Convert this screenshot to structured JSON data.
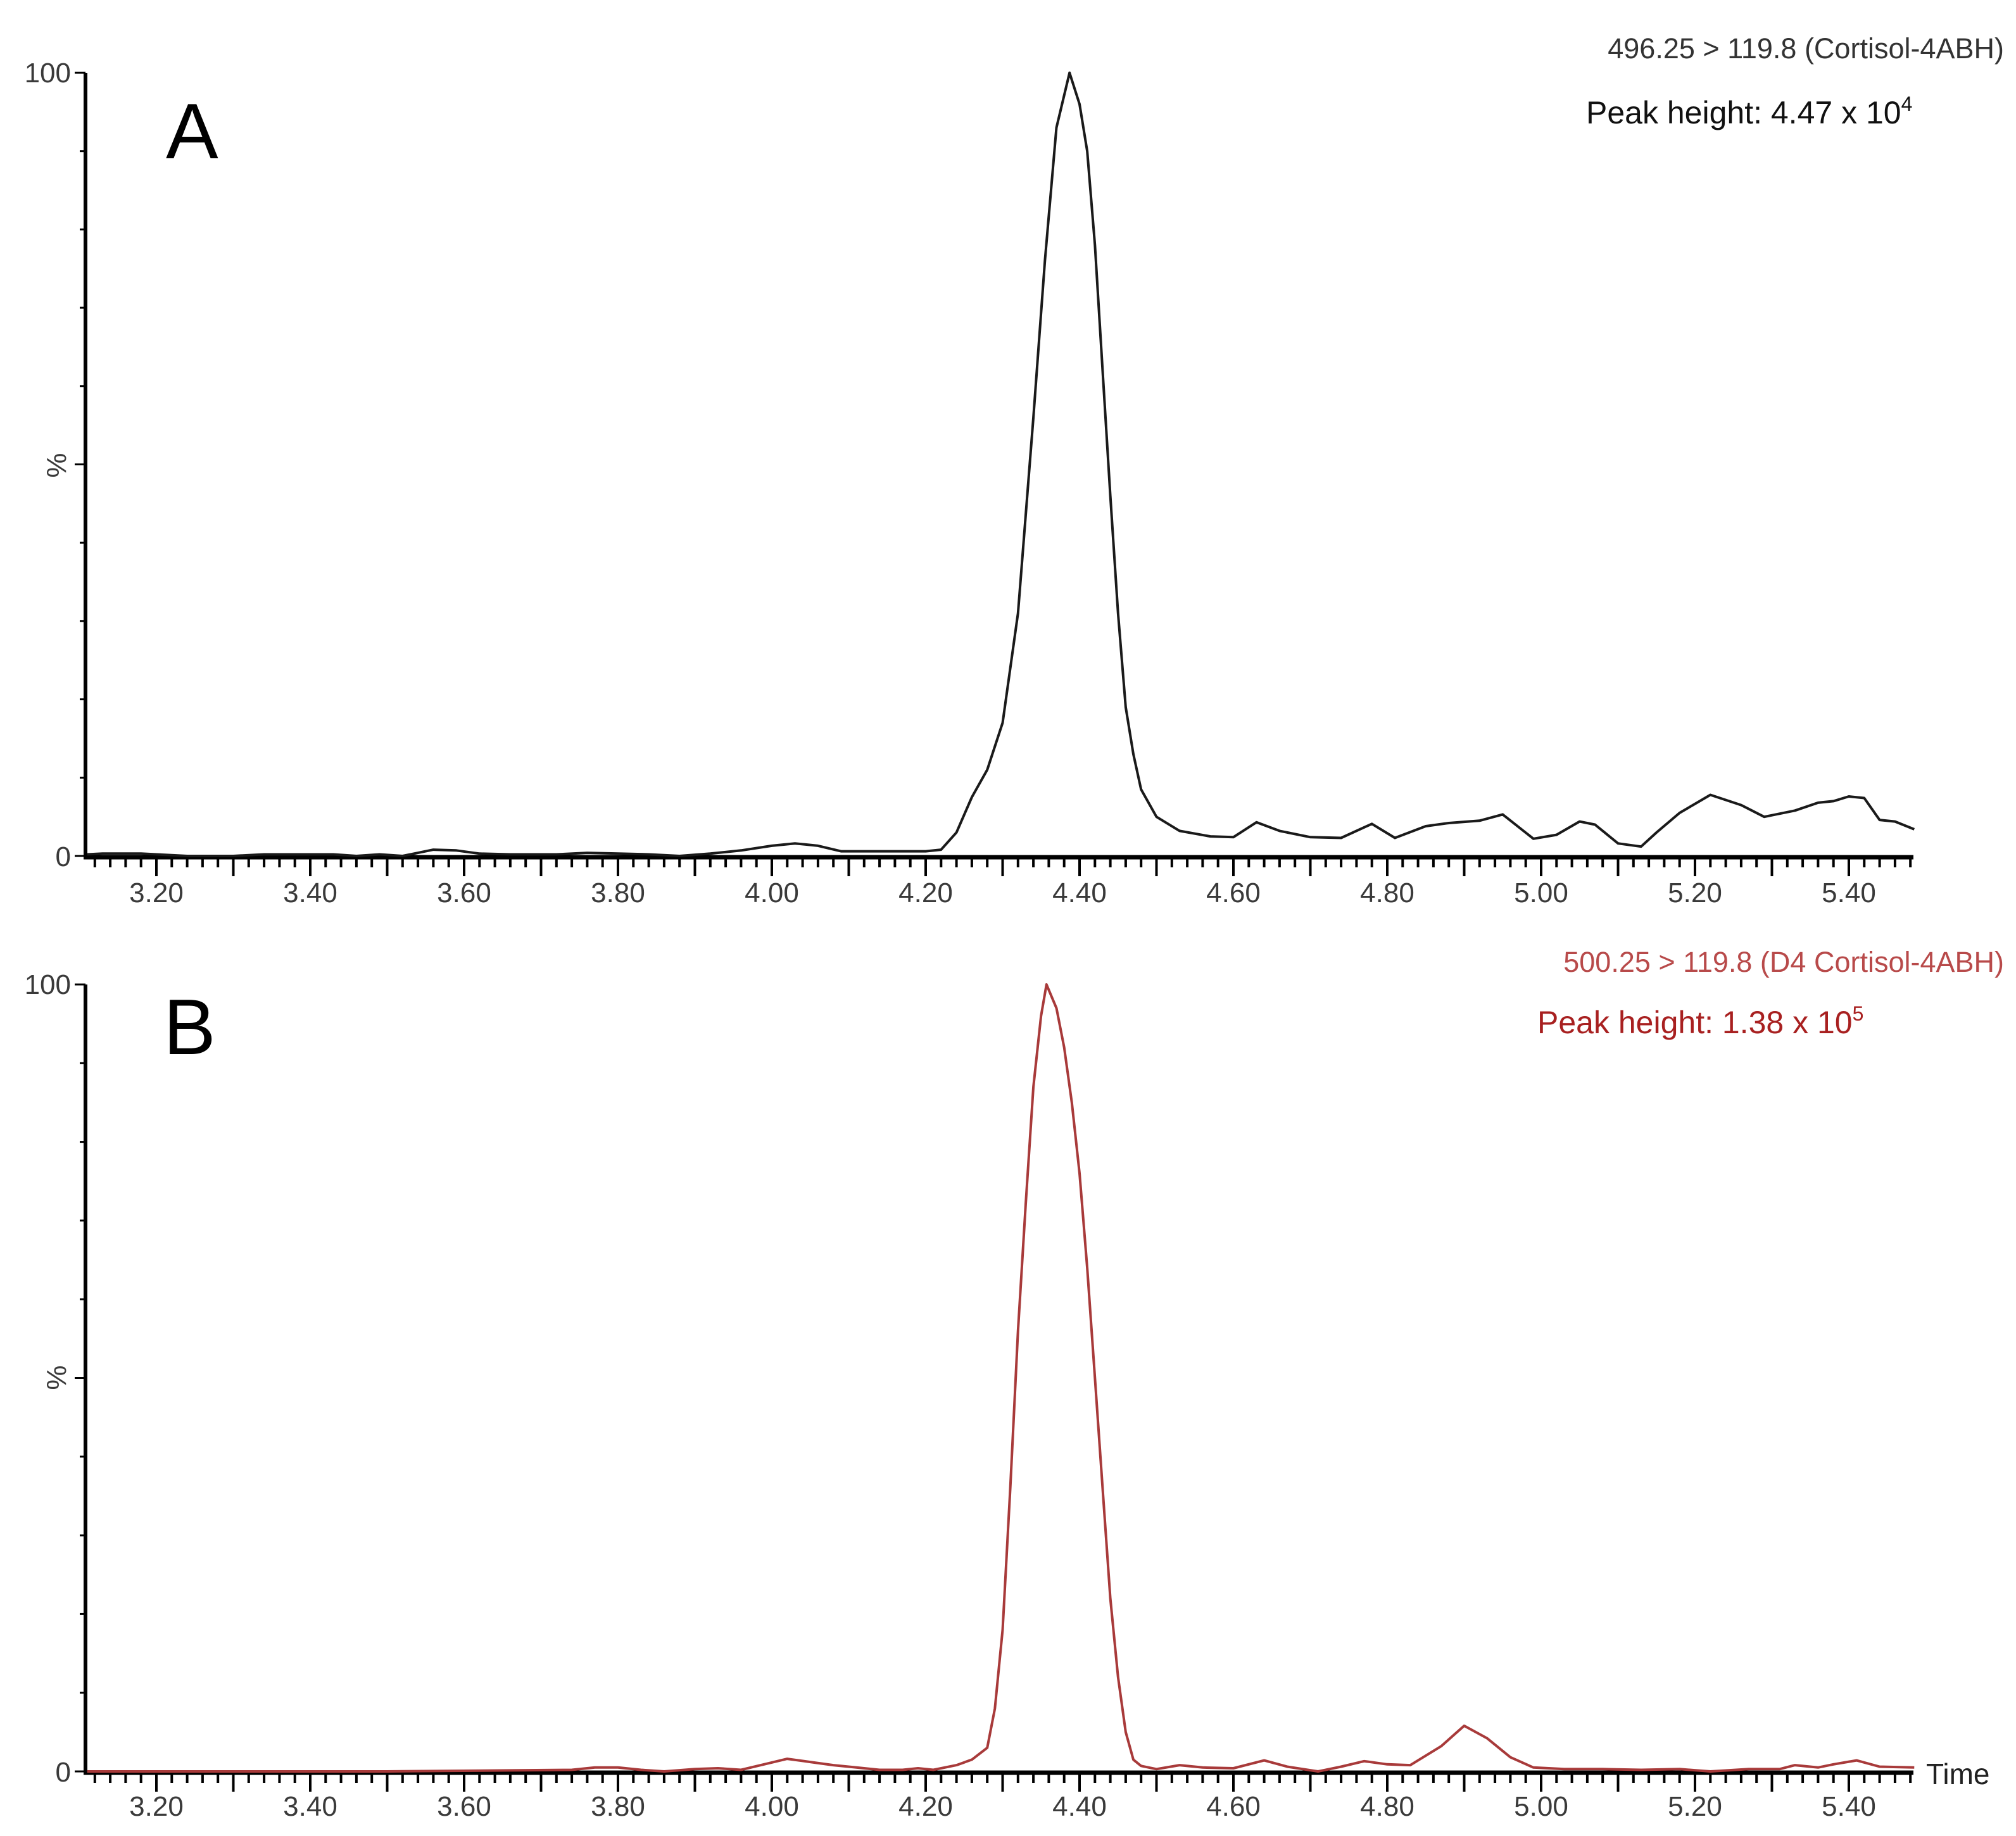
{
  "chart_data": [
    {
      "type": "line",
      "panel": "A",
      "title": "496.25 > 119.8 (Cortisol-4ABH)",
      "annotation": "Peak height: 4.47 x 10",
      "annotation_exponent": "4",
      "xlabel": "",
      "ylabel": "%",
      "xlim": [
        3.107,
        5.485
      ],
      "ylim": [
        0,
        100
      ],
      "x_ticks": [
        "3.20",
        "3.40",
        "3.60",
        "3.80",
        "4.00",
        "4.20",
        "4.40",
        "4.60",
        "4.80",
        "5.00",
        "5.20",
        "5.40"
      ],
      "y_ticks": [
        "0",
        "100"
      ],
      "y_mid_label": "%",
      "color": "#1a1a1a",
      "label_color": "#333333",
      "grid": false,
      "x": [
        3.11,
        3.13,
        3.15,
        3.18,
        3.2,
        3.24,
        3.3,
        3.34,
        3.4,
        3.43,
        3.46,
        3.49,
        3.52,
        3.54,
        3.56,
        3.59,
        3.62,
        3.66,
        3.72,
        3.76,
        3.8,
        3.84,
        3.88,
        3.92,
        3.96,
        4.0,
        4.03,
        4.06,
        4.09,
        4.12,
        4.16,
        4.2,
        4.22,
        4.24,
        4.26,
        4.28,
        4.3,
        4.32,
        4.34,
        4.355,
        4.37,
        4.387,
        4.4,
        4.41,
        4.42,
        4.43,
        4.44,
        4.45,
        4.46,
        4.47,
        4.48,
        4.5,
        4.53,
        4.57,
        4.6,
        4.63,
        4.66,
        4.7,
        4.74,
        4.78,
        4.81,
        4.85,
        4.88,
        4.92,
        4.95,
        4.99,
        5.02,
        5.05,
        5.07,
        5.1,
        5.13,
        5.15,
        5.18,
        5.22,
        5.26,
        5.29,
        5.33,
        5.36,
        5.38,
        5.4,
        5.42,
        5.44,
        5.46,
        5.485
      ],
      "y": [
        0.2,
        0.3,
        0.3,
        0.3,
        0.2,
        0.0,
        0.0,
        0.2,
        0.2,
        0.2,
        0.0,
        0.2,
        0.0,
        0.4,
        0.8,
        0.7,
        0.3,
        0.2,
        0.2,
        0.4,
        0.3,
        0.2,
        0.0,
        0.3,
        0.7,
        1.3,
        1.6,
        1.3,
        0.6,
        0.6,
        0.6,
        0.6,
        0.8,
        3.0,
        7.5,
        11.0,
        17.0,
        31.0,
        56.0,
        76.0,
        93.0,
        100.0,
        96.0,
        90.0,
        78.0,
        62.0,
        46.0,
        31.0,
        19.0,
        13.0,
        8.5,
        5.0,
        3.2,
        2.5,
        2.4,
        4.3,
        3.2,
        2.4,
        2.3,
        4.1,
        2.3,
        3.8,
        4.2,
        4.5,
        5.3,
        2.2,
        2.7,
        4.4,
        4.0,
        1.6,
        1.2,
        3.0,
        5.5,
        7.8,
        6.5,
        5.0,
        5.8,
        6.8,
        7.0,
        7.6,
        7.4,
        4.6,
        4.4,
        3.4
      ]
    },
    {
      "type": "line",
      "panel": "B",
      "title": "500.25 > 119.8 (D4 Cortisol-4ABH)",
      "annotation": "Peak height: 1.38 x 10",
      "annotation_exponent": "5",
      "xlabel": "Time",
      "ylabel": "%",
      "xlim": [
        3.107,
        5.485
      ],
      "ylim": [
        0,
        100
      ],
      "x_ticks": [
        "3.20",
        "3.40",
        "3.60",
        "3.80",
        "4.00",
        "4.20",
        "4.40",
        "4.60",
        "4.80",
        "5.00",
        "5.20",
        "5.40"
      ],
      "y_ticks": [
        "0",
        "100"
      ],
      "y_mid_label": "%",
      "color": "#a83a3a",
      "label_color": "#b84a4a",
      "annotation_color": "#a82020",
      "grid": false,
      "x": [
        3.11,
        3.5,
        3.74,
        3.77,
        3.8,
        3.83,
        3.86,
        3.9,
        3.93,
        3.96,
        3.99,
        4.02,
        4.05,
        4.08,
        4.11,
        4.14,
        4.17,
        4.19,
        4.21,
        4.24,
        4.26,
        4.28,
        4.29,
        4.3,
        4.31,
        4.32,
        4.33,
        4.34,
        4.35,
        4.357,
        4.37,
        4.38,
        4.39,
        4.4,
        4.41,
        4.42,
        4.43,
        4.44,
        4.45,
        4.46,
        4.47,
        4.48,
        4.5,
        4.53,
        4.56,
        4.6,
        4.64,
        4.67,
        4.71,
        4.74,
        4.77,
        4.8,
        4.83,
        4.87,
        4.9,
        4.93,
        4.96,
        4.99,
        5.03,
        5.08,
        5.13,
        5.18,
        5.22,
        5.27,
        5.31,
        5.33,
        5.36,
        5.38,
        5.41,
        5.44,
        5.485
      ],
      "y": [
        0.0,
        0.0,
        0.2,
        0.5,
        0.5,
        0.2,
        0.0,
        0.3,
        0.4,
        0.2,
        0.9,
        1.6,
        1.2,
        0.8,
        0.5,
        0.2,
        0.2,
        0.4,
        0.2,
        0.8,
        1.5,
        3.0,
        8.0,
        18.0,
        36.0,
        56.0,
        72.0,
        87.0,
        96.0,
        100.0,
        97.0,
        92.0,
        85.0,
        76.0,
        64.0,
        50.0,
        36.0,
        22.0,
        12.0,
        5.0,
        1.5,
        0.7,
        0.3,
        0.8,
        0.5,
        0.4,
        1.4,
        0.6,
        0.0,
        0.6,
        1.3,
        0.9,
        0.8,
        3.2,
        5.8,
        4.2,
        1.8,
        0.5,
        0.3,
        0.3,
        0.2,
        0.3,
        0.0,
        0.3,
        0.3,
        0.8,
        0.5,
        0.9,
        1.4,
        0.6,
        0.5
      ]
    }
  ],
  "panels": {
    "a": {
      "letter": "A",
      "title": "496.25 > 119.8 (Cortisol-4ABH)",
      "peak_label": "Peak height: 4.47 x 10",
      "peak_exp": "4",
      "y_top": "100",
      "y_bottom": "0",
      "y_mid": "%"
    },
    "b": {
      "letter": "B",
      "title": "500.25 > 119.8 (D4 Cortisol-4ABH)",
      "peak_label": "Peak height: 1.38 x 10",
      "peak_exp": "5",
      "y_top": "100",
      "y_bottom": "0",
      "y_mid": "%",
      "x_axis_label": "Time"
    }
  }
}
